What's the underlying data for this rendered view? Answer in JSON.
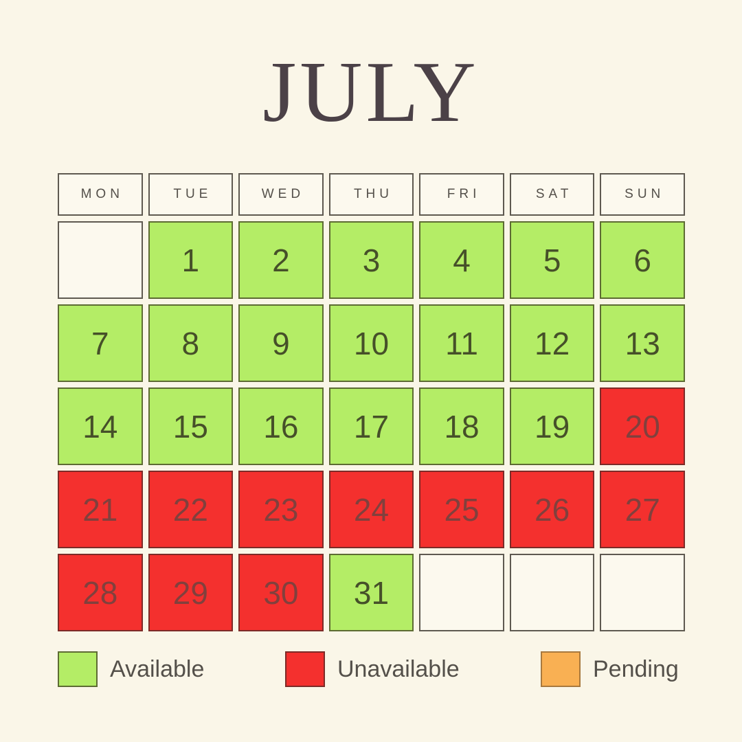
{
  "title": "JULY",
  "weekdays": [
    "MON",
    "TUE",
    "WED",
    "THU",
    "FRI",
    "SAT",
    "SUN"
  ],
  "calendar_cells": [
    {
      "day": "",
      "state": "empty"
    },
    {
      "day": "1",
      "state": "available"
    },
    {
      "day": "2",
      "state": "available"
    },
    {
      "day": "3",
      "state": "available"
    },
    {
      "day": "4",
      "state": "available"
    },
    {
      "day": "5",
      "state": "available"
    },
    {
      "day": "6",
      "state": "available"
    },
    {
      "day": "7",
      "state": "available"
    },
    {
      "day": "8",
      "state": "available"
    },
    {
      "day": "9",
      "state": "available"
    },
    {
      "day": "10",
      "state": "available"
    },
    {
      "day": "11",
      "state": "available"
    },
    {
      "day": "12",
      "state": "available"
    },
    {
      "day": "13",
      "state": "available"
    },
    {
      "day": "14",
      "state": "available"
    },
    {
      "day": "15",
      "state": "available"
    },
    {
      "day": "16",
      "state": "available"
    },
    {
      "day": "17",
      "state": "available"
    },
    {
      "day": "18",
      "state": "available"
    },
    {
      "day": "19",
      "state": "available"
    },
    {
      "day": "20",
      "state": "unavailable"
    },
    {
      "day": "21",
      "state": "unavailable"
    },
    {
      "day": "22",
      "state": "unavailable"
    },
    {
      "day": "23",
      "state": "unavailable"
    },
    {
      "day": "24",
      "state": "unavailable"
    },
    {
      "day": "25",
      "state": "unavailable"
    },
    {
      "day": "26",
      "state": "unavailable"
    },
    {
      "day": "27",
      "state": "unavailable"
    },
    {
      "day": "28",
      "state": "unavailable"
    },
    {
      "day": "29",
      "state": "unavailable"
    },
    {
      "day": "30",
      "state": "unavailable"
    },
    {
      "day": "31",
      "state": "available"
    },
    {
      "day": "",
      "state": "empty"
    },
    {
      "day": "",
      "state": "empty"
    },
    {
      "day": "",
      "state": "empty"
    }
  ],
  "legend": [
    {
      "label": "Available",
      "state": "available",
      "color": "#B4ED66"
    },
    {
      "label": "Unavailable",
      "state": "unavailable",
      "color": "#F4302E"
    },
    {
      "label": "Pending",
      "state": "pending",
      "color": "#F9B053"
    }
  ],
  "colors": {
    "background": "#FAF6E8",
    "available": "#B4ED66",
    "unavailable": "#F4302E",
    "pending": "#F9B053",
    "title_text": "#4B4147",
    "label_text": "#54504A"
  }
}
